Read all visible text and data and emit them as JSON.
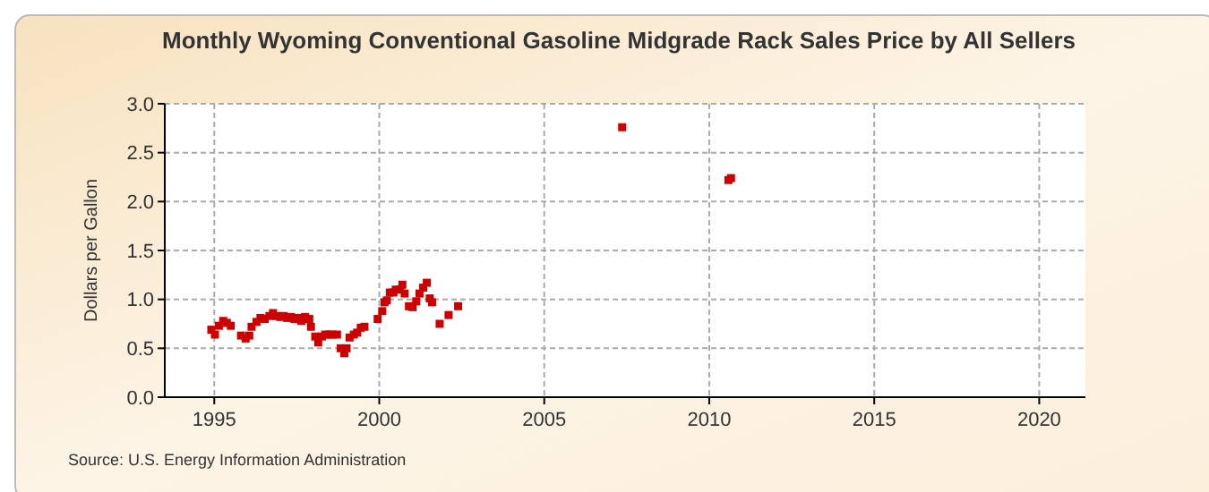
{
  "chart_data": {
    "type": "scatter",
    "title": "Monthly Wyoming Conventional Gasoline Midgrade Rack Sales Price by All Sellers",
    "ylabel": "Dollars per Gallon",
    "annotations": [
      "Source: U.S. Energy Information Administration"
    ],
    "x": [
      1994.91,
      1995.02,
      1995.14,
      1995.27,
      1995.38,
      1995.5,
      1995.81,
      1995.95,
      1996.06,
      1996.13,
      1996.28,
      1996.4,
      1996.53,
      1996.67,
      1996.78,
      1996.89,
      1997.0,
      1997.1,
      1997.21,
      1997.32,
      1997.43,
      1997.54,
      1997.64,
      1997.75,
      1997.88,
      1997.93,
      1998.06,
      1998.15,
      1998.26,
      1998.36,
      1998.47,
      1998.58,
      1998.72,
      1998.83,
      1998.94,
      1999.01,
      1999.1,
      1999.23,
      1999.33,
      1999.44,
      1999.55,
      1999.95,
      2000.09,
      2000.16,
      2000.23,
      2000.32,
      2000.43,
      2000.5,
      2000.63,
      2000.7,
      2000.77,
      2000.9,
      2001.01,
      2001.12,
      2001.22,
      2001.33,
      2001.44,
      2001.53,
      2001.6,
      2001.83,
      2002.1,
      2002.39,
      2007.36,
      2010.58,
      2010.66
    ],
    "series": [
      {
        "color": "#cc0000",
        "values": [
          0.69,
          0.64,
          0.73,
          0.78,
          0.76,
          0.73,
          0.63,
          0.6,
          0.63,
          0.72,
          0.77,
          0.81,
          0.8,
          0.83,
          0.86,
          0.83,
          0.82,
          0.83,
          0.81,
          0.82,
          0.8,
          0.81,
          0.78,
          0.82,
          0.8,
          0.72,
          0.62,
          0.56,
          0.62,
          0.64,
          0.64,
          0.64,
          0.64,
          0.5,
          0.45,
          0.5,
          0.61,
          0.64,
          0.66,
          0.71,
          0.72,
          0.8,
          0.88,
          0.97,
          0.99,
          1.07,
          1.07,
          1.1,
          1.1,
          1.15,
          1.06,
          0.93,
          0.92,
          0.98,
          1.06,
          1.12,
          1.17,
          1.01,
          0.97,
          0.75,
          0.84,
          0.93,
          2.76,
          2.22,
          2.24
        ]
      }
    ],
    "xlim": [
      1993.5,
      2021.4
    ],
    "xticks": [
      1995,
      2000,
      2005,
      2010,
      2015,
      2020
    ],
    "ylim": [
      0,
      3
    ],
    "yticks": [
      {
        "value": 0,
        "label": "0.0"
      },
      {
        "value": 0.5,
        "label": "0.5"
      },
      {
        "value": 1,
        "label": "1.0"
      },
      {
        "value": 1.5,
        "label": "1.5"
      },
      {
        "value": 2,
        "label": "2.0"
      },
      {
        "value": 2.5,
        "label": "2.5"
      },
      {
        "value": 3,
        "label": "3.0"
      }
    ],
    "grid": true,
    "marker": "square"
  }
}
